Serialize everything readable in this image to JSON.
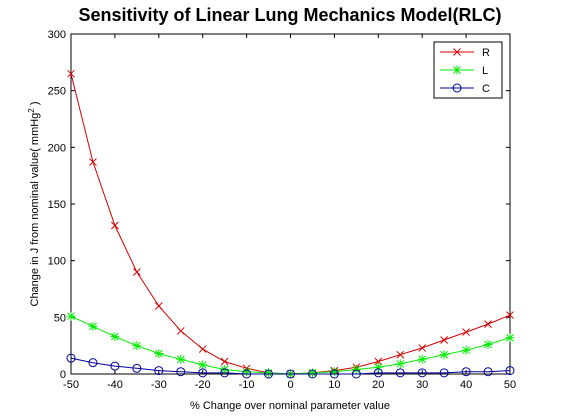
{
  "chart_data": {
    "type": "line",
    "title": "Sensitivity of Linear Lung Mechanics Model(RLC)",
    "xlabel": "% Change over nominal parameter value",
    "ylabel_main": "Change in J from nominal value( mmHg",
    "ylabel_sup": "2",
    "ylabel_end": " )",
    "xlim": [
      -50,
      50
    ],
    "ylim": [
      0,
      300
    ],
    "xticks": [
      -50,
      -40,
      -30,
      -20,
      -10,
      0,
      10,
      20,
      30,
      40,
      50
    ],
    "yticks": [
      0,
      50,
      100,
      150,
      200,
      250,
      300
    ],
    "grid": false,
    "legend_position": "top-right",
    "x": [
      -50,
      -45,
      -40,
      -35,
      -30,
      -25,
      -20,
      -15,
      -10,
      -5,
      0,
      5,
      10,
      15,
      20,
      25,
      30,
      35,
      40,
      45,
      50
    ],
    "series": [
      {
        "name": "R",
        "color": "#d40000",
        "marker": "x",
        "values": [
          265,
          187,
          131,
          90,
          60,
          38,
          22,
          11,
          5,
          1,
          0,
          1,
          3,
          6,
          11,
          17,
          23,
          30,
          37,
          44,
          52
        ]
      },
      {
        "name": "L",
        "color": "#00ee00",
        "marker": "star",
        "values": [
          51,
          42,
          33,
          25,
          18,
          13,
          8,
          4,
          2,
          1,
          0,
          1,
          2,
          4,
          6,
          9,
          13,
          17,
          21,
          26,
          32
        ]
      },
      {
        "name": "C",
        "color": "#000099",
        "marker": "circle",
        "values": [
          14,
          10,
          7,
          5,
          3,
          2,
          1,
          1,
          0,
          0,
          0,
          0,
          0,
          0,
          1,
          1,
          1,
          1,
          2,
          2,
          3
        ]
      }
    ]
  }
}
